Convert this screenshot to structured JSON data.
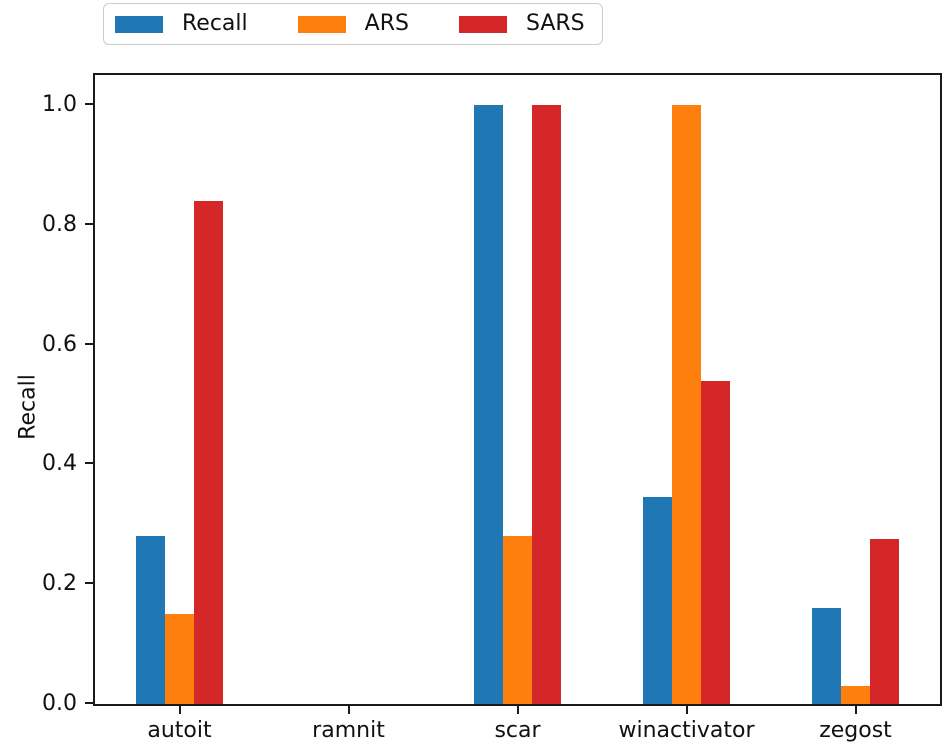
{
  "chart_data": {
    "type": "bar",
    "title": "",
    "xlabel": "",
    "ylabel": "Recall",
    "categories": [
      "autoit",
      "ramnit",
      "scar",
      "winactivator",
      "zegost"
    ],
    "series": [
      {
        "name": "Recall",
        "color": "#1f77b4",
        "values": [
          0.28,
          0,
          1.0,
          0.345,
          0.16
        ]
      },
      {
        "name": "ARS",
        "color": "#ff7f0e",
        "values": [
          0.15,
          0,
          0.28,
          1.0,
          0.03
        ]
      },
      {
        "name": "SARS",
        "color": "#d62728",
        "values": [
          0.84,
          0,
          1.0,
          0.54,
          0.275
        ]
      }
    ],
    "ylim": [
      0,
      1.05
    ],
    "yticks": [
      "0.0",
      "0.2",
      "0.4",
      "0.6",
      "0.8",
      "1.0"
    ],
    "grid": false,
    "legend_position": "top-left-outside",
    "axis_color": "#1a1a1a",
    "background_color": "#ffffff"
  }
}
